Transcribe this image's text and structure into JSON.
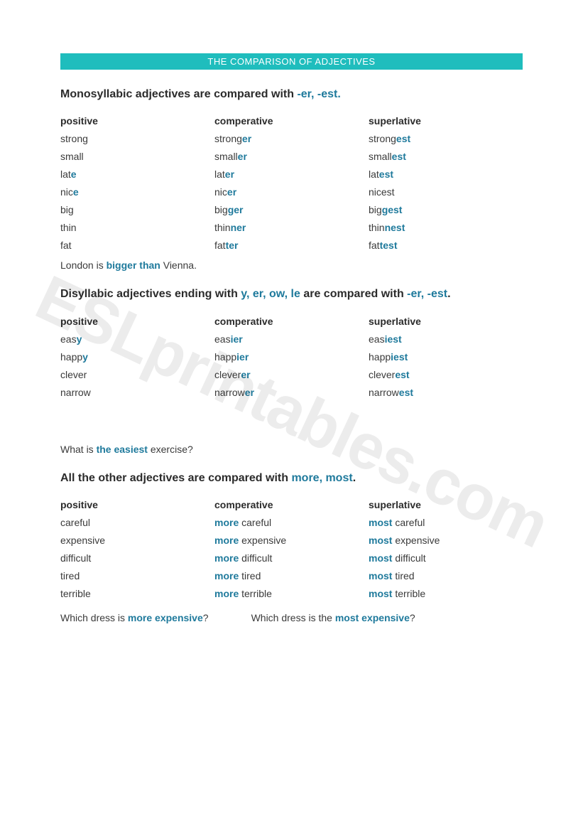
{
  "colors": {
    "banner_bg": "#1fbdbd",
    "banner_text": "#ffffff",
    "body_text": "#3a3a3a",
    "highlight": "#1f7a9c",
    "heading": "#2b2b2b"
  },
  "watermark": "ESLprintables.com",
  "banner": "THE COMPARISON OF ADJECTIVES",
  "section1": {
    "title_pre": "Monosyllabic adjectives are compared with ",
    "title_hl": "-er, -est.",
    "headers": {
      "c1": "positive",
      "c2": "comperative",
      "c3": "superlative"
    },
    "rows": [
      {
        "p": "strong",
        "c_base": "strong",
        "c_suf": "er",
        "s_base": "strong",
        "s_suf": "est"
      },
      {
        "p": "small",
        "c_base": "small",
        "c_suf": "er",
        "s_base": "small",
        "s_suf": "est"
      },
      {
        "p_base": "lat",
        "p_suf": "e",
        "c_base": "lat",
        "c_suf": "er",
        "s_base": "lat",
        "s_suf": "est"
      },
      {
        "p_base": "nic",
        "p_suf": "e",
        "c_base": "nic",
        "c_suf": "er",
        "s_base": "nicest",
        "s_suf": ""
      },
      {
        "p": "big",
        "c_base": "big",
        "c_suf": "ger",
        "s_base": "big",
        "s_suf": "gest"
      },
      {
        "p": "thin",
        "c_base": "thin",
        "c_suf": "ner",
        "s_base": "thin",
        "s_suf": "nest"
      },
      {
        "p": "fat",
        "c_base": "fat",
        "c_suf": "ter",
        "s_base": "fat",
        "s_suf": "test"
      }
    ],
    "example_pre": "London is ",
    "example_hl": "bigger than",
    "example_post": " Vienna."
  },
  "section2": {
    "title_pre": "Disyllabic adjectives ending with ",
    "title_hl1": "y, er, ow, le",
    "title_mid": " are compared with ",
    "title_hl2": "-er, -est",
    "title_post": ".",
    "headers": {
      "c1": "positive",
      "c2": "comperative",
      "c3": "superlative"
    },
    "rows": [
      {
        "p_base": "eas",
        "p_suf": "y",
        "c_base": "eas",
        "c_suf": "ier",
        "s_base": "eas",
        "s_suf": "iest"
      },
      {
        "p_base": "happ",
        "p_suf": "y",
        "c_base": "happ",
        "c_suf": "ier",
        "s_base": "happ",
        "s_suf": "iest"
      },
      {
        "p": "clever",
        "c_base": "clever",
        "c_suf": "er",
        "s_base": "clever",
        "s_suf": "est"
      },
      {
        "p": "narrow",
        "c_base": "narrow",
        "c_suf": "er",
        "s_base": "narrow",
        "s_suf": "est"
      }
    ],
    "example_pre": "What is ",
    "example_hl": "the easiest",
    "example_post": " exercise?"
  },
  "section3": {
    "title_pre": "All the other adjectives are compared with ",
    "title_hl": "more, most",
    "title_post": ".",
    "headers": {
      "c1": "positive",
      "c2": "comperative",
      "c3": "superlative"
    },
    "rows": [
      {
        "p": "careful",
        "c_pre": "more",
        "c_post": " careful",
        "s_pre": "most",
        "s_post": " careful"
      },
      {
        "p": "expensive",
        "c_pre": "more",
        "c_post": " expensive",
        "s_pre": "most",
        "s_post": " expensive"
      },
      {
        "p": "difficult",
        "c_pre": "more",
        "c_post": " difficult",
        "s_pre": "most",
        "s_post": " difficult"
      },
      {
        "p": "tired",
        "c_pre": "more",
        "c_post": " tired",
        "s_pre": "most",
        "s_post": " tired"
      },
      {
        "p": "terrible",
        "c_pre": "more",
        "c_post": " terrible",
        "s_pre": "most",
        "s_post": " terrible"
      }
    ],
    "example1_pre": "Which dress is ",
    "example1_hl": "more expensive",
    "example1_post": "?",
    "example2_pre": "Which dress is the ",
    "example2_hl": "most expensive",
    "example2_post": "?"
  }
}
